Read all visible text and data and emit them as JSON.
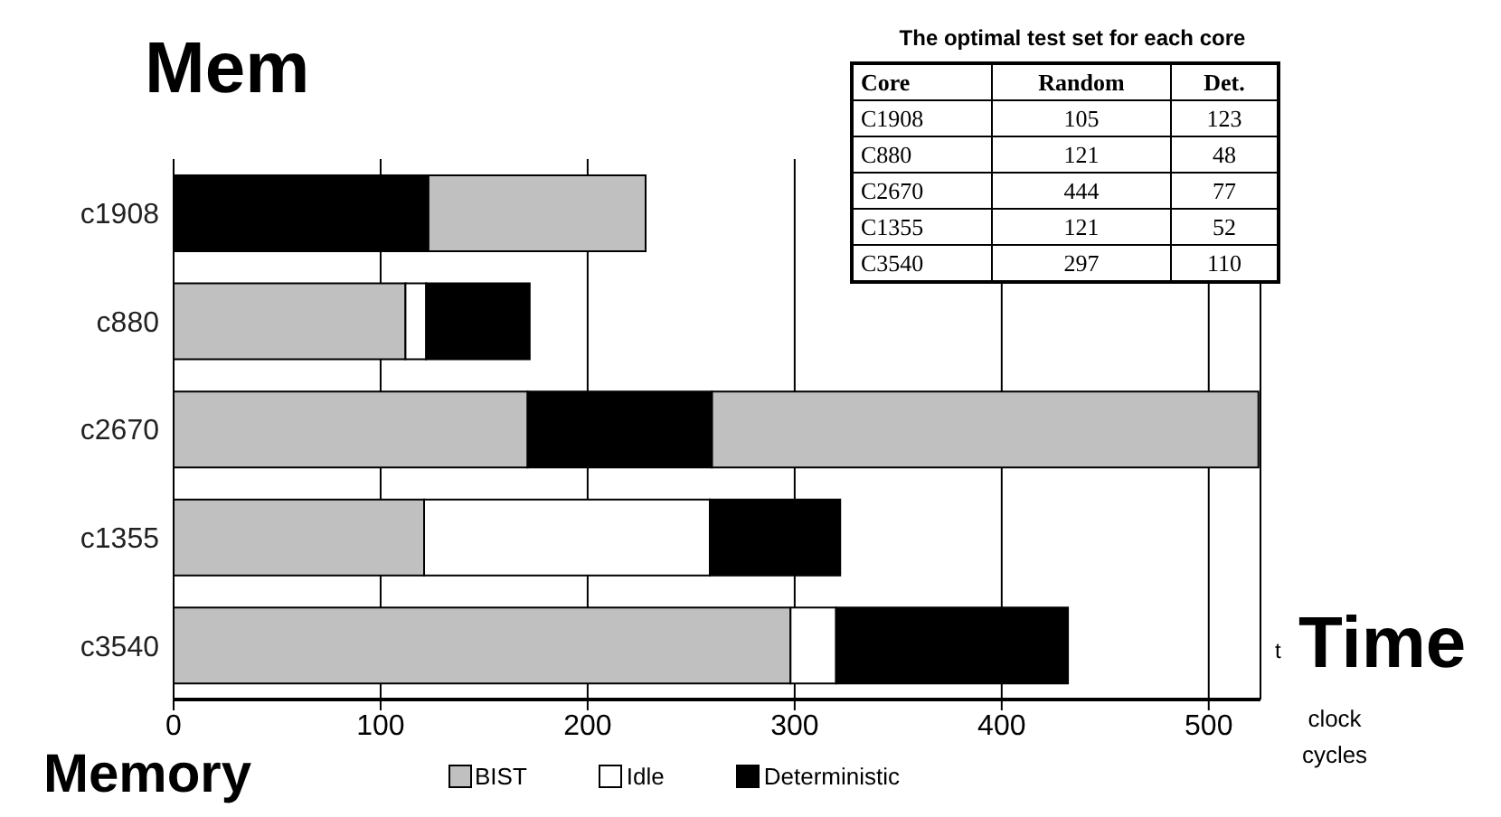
{
  "chart_data": {
    "type": "bar",
    "orientation": "horizontal",
    "categories": [
      "c1908",
      "c880",
      "c2670",
      "c1355",
      "c3540"
    ],
    "series": [
      {
        "name": "BIST",
        "color": "#c0c0c0",
        "values": [
          105,
          112,
          171,
          121,
          298
        ],
        "base": [
          123,
          0,
          0,
          0,
          0
        ]
      },
      {
        "color": "#c0c0c0",
        "values": [
          null,
          null,
          264,
          null,
          null
        ],
        "base": [
          null,
          null,
          260,
          null,
          null
        ]
      },
      {
        "name": "Idle",
        "color": "#ffffff",
        "values": [
          null,
          10,
          null,
          138,
          22
        ],
        "base": [
          null,
          112,
          null,
          121,
          298
        ]
      },
      {
        "name": "Deterministic",
        "color": "#000000",
        "values": [
          123,
          50,
          89,
          63,
          112
        ],
        "base": [
          0,
          122,
          171,
          259,
          320
        ]
      }
    ],
    "xlim": [
      0,
      525
    ],
    "xticks": [
      0,
      100,
      200,
      300,
      400,
      500
    ],
    "xlabel": "clock cycles",
    "grid": "x",
    "legend": "bottom",
    "annotations": [
      "Mem",
      "Time",
      "t",
      "Memory",
      "The optimal test set for each core",
      "Core",
      "Random",
      "Det.",
      "C1908",
      "105",
      "123",
      "C880",
      "121",
      "48",
      "C2670",
      "444",
      "77",
      "C1355",
      "121",
      "52",
      "C3540",
      "297",
      "110"
    ]
  }
}
